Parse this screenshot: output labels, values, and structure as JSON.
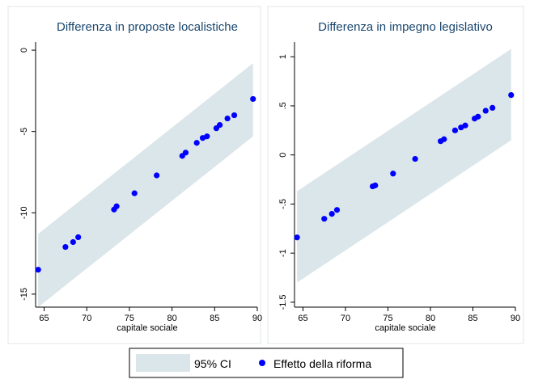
{
  "chart_data": [
    {
      "type": "scatter",
      "title": "Differenza in proposte localistiche",
      "xlabel": "capitale sociale",
      "ylabel": "",
      "xlim": [
        64,
        90
      ],
      "ylim": [
        -15.8,
        0.5
      ],
      "xticks": [
        65,
        70,
        75,
        80,
        85,
        90
      ],
      "yticks": [
        0,
        -5,
        -10,
        -15
      ],
      "band": {
        "name": "95% CI",
        "x": [
          64.3,
          89.5
        ],
        "lower": [
          -15.8,
          -5.3
        ],
        "upper": [
          -11.3,
          -0.8
        ]
      },
      "series": [
        {
          "name": "Effetto della riforma",
          "points": [
            [
              64.3,
              -13.5
            ],
            [
              67.5,
              -12.1
            ],
            [
              68.4,
              -11.8
            ],
            [
              69.0,
              -11.5
            ],
            [
              73.2,
              -9.8
            ],
            [
              73.5,
              -9.6
            ],
            [
              75.6,
              -8.8
            ],
            [
              78.2,
              -7.7
            ],
            [
              81.2,
              -6.5
            ],
            [
              81.6,
              -6.3
            ],
            [
              82.9,
              -5.7
            ],
            [
              83.6,
              -5.4
            ],
            [
              84.1,
              -5.3
            ],
            [
              85.2,
              -4.8
            ],
            [
              85.6,
              -4.6
            ],
            [
              86.5,
              -4.2
            ],
            [
              87.3,
              -4.0
            ],
            [
              89.5,
              -3.0
            ]
          ]
        }
      ]
    },
    {
      "type": "scatter",
      "title": "Differenza in impegno legislativo",
      "xlabel": "capitale sociale",
      "ylabel": "",
      "xlim": [
        64,
        90
      ],
      "ylim": [
        -1.55,
        1.15
      ],
      "xticks": [
        65,
        70,
        75,
        80,
        85,
        90
      ],
      "yticks": [
        1,
        0.5,
        0,
        -0.5,
        -1,
        -1.5
      ],
      "ytick_labels": [
        "1",
        ".5",
        "0",
        "-.5",
        "-1",
        "-1.5"
      ],
      "band": {
        "name": "95% CI",
        "x": [
          64.3,
          89.5
        ],
        "lower": [
          -1.3,
          0.15
        ],
        "upper": [
          -0.37,
          1.08
        ]
      },
      "series": [
        {
          "name": "Effetto della riforma",
          "points": [
            [
              64.3,
              -0.84
            ],
            [
              67.5,
              -0.65
            ],
            [
              68.4,
              -0.6
            ],
            [
              69.0,
              -0.56
            ],
            [
              73.2,
              -0.32
            ],
            [
              73.5,
              -0.31
            ],
            [
              75.6,
              -0.19
            ],
            [
              78.2,
              -0.04
            ],
            [
              81.2,
              0.14
            ],
            [
              81.6,
              0.16
            ],
            [
              82.9,
              0.25
            ],
            [
              83.6,
              0.28
            ],
            [
              84.1,
              0.3
            ],
            [
              85.2,
              0.37
            ],
            [
              85.6,
              0.39
            ],
            [
              86.5,
              0.45
            ],
            [
              87.3,
              0.48
            ],
            [
              89.5,
              0.61
            ]
          ]
        }
      ]
    }
  ],
  "legend": {
    "items": [
      {
        "label": "95% CI",
        "kind": "band",
        "color": "#dbe6ea"
      },
      {
        "label": "Effetto della riforma",
        "kind": "dot",
        "color": "#0000ff"
      }
    ]
  },
  "colors": {
    "band": "#dbe6ea",
    "dots": "#0000ff",
    "title": "#1a476f",
    "panel_border": "#e0e6e9",
    "axis": "#000000"
  }
}
